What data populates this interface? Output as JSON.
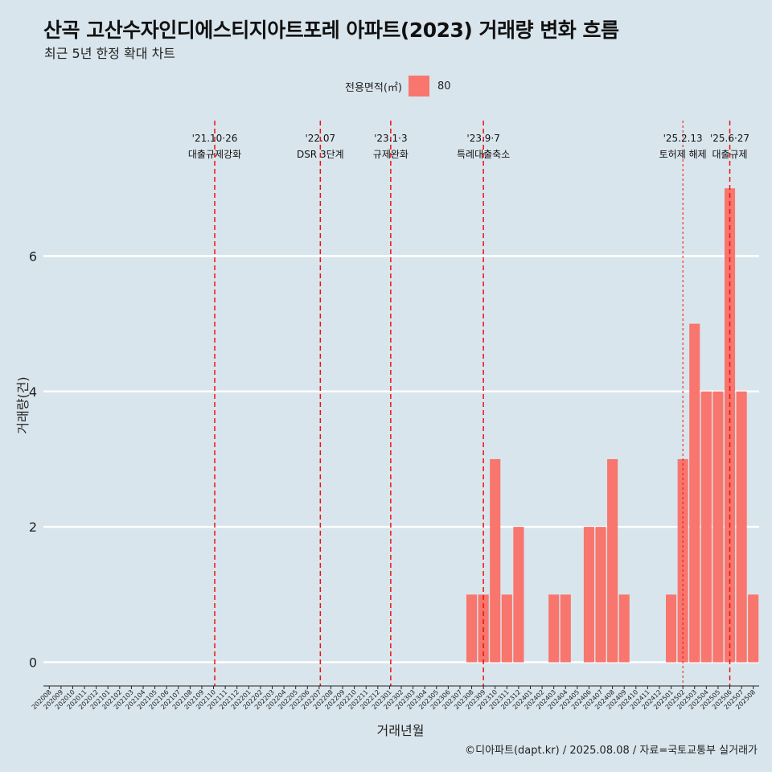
{
  "chart_data": {
    "type": "bar",
    "title": "산곡 고산수자인디에스티지아트포레 아파트(2023) 거래량 변화 흐름",
    "subtitle": "최근 5년 한정 확대 차트",
    "xlabel": "거래년월",
    "ylabel": "거래량(건)",
    "ylim": [
      -0.35,
      8
    ],
    "yticks": [
      0,
      2,
      4,
      6
    ],
    "grid": true,
    "legend_position": "top",
    "legend": {
      "title": "전용면적(㎡)",
      "entries": [
        {
          "label": "80",
          "color": "#f8766d"
        }
      ]
    },
    "categories": [
      "202008",
      "202009",
      "202010",
      "202011",
      "202012",
      "202101",
      "202102",
      "202103",
      "202104",
      "202105",
      "202106",
      "202107",
      "202108",
      "202109",
      "202110",
      "202111",
      "202112",
      "202201",
      "202202",
      "202203",
      "202204",
      "202205",
      "202206",
      "202207",
      "202208",
      "202209",
      "202210",
      "202211",
      "202212",
      "202301",
      "202302",
      "202303",
      "202304",
      "202305",
      "202306",
      "202307",
      "202308",
      "202309",
      "202310",
      "202311",
      "202312",
      "202401",
      "202402",
      "202403",
      "202404",
      "202405",
      "202406",
      "202407",
      "202408",
      "202409",
      "202410",
      "202411",
      "202412",
      "202501",
      "202502",
      "202503",
      "202504",
      "202505",
      "202506",
      "202507",
      "202508"
    ],
    "series": [
      {
        "name": "80",
        "color": "#f8766d",
        "values": [
          0,
          0,
          0,
          0,
          0,
          0,
          0,
          0,
          0,
          0,
          0,
          0,
          0,
          0,
          0,
          0,
          0,
          0,
          0,
          0,
          0,
          0,
          0,
          0,
          0,
          0,
          0,
          0,
          0,
          0,
          0,
          0,
          0,
          0,
          0,
          0,
          1,
          1,
          3,
          1,
          2,
          0,
          0,
          1,
          1,
          0,
          2,
          2,
          3,
          1,
          0,
          0,
          0,
          1,
          3,
          5,
          4,
          4,
          7,
          4,
          1
        ]
      }
    ],
    "annotations": [
      {
        "x": 14.1,
        "date": "'21.10·26",
        "label": "대출규제강화",
        "style": "dashed"
      },
      {
        "x": 23.1,
        "date": "'22.07",
        "label": "DSR 3단계",
        "style": "dashed"
      },
      {
        "x": 29.1,
        "date": "'23.1·3",
        "label": "규제완화",
        "style": "dashed"
      },
      {
        "x": 37.0,
        "date": "'23.9·7",
        "label": "특례대출축소",
        "style": "dashed"
      },
      {
        "x": 54.0,
        "date": "'25.2.13",
        "label": "토허제 해제",
        "style": "dotted"
      },
      {
        "x": 58.0,
        "date": "'25.6·27",
        "label": "대출규제",
        "style": "dashed"
      }
    ]
  },
  "caption": "©디아파트(dapt.kr) / 2025.08.08 / 자료=국토교통부 실거래가"
}
